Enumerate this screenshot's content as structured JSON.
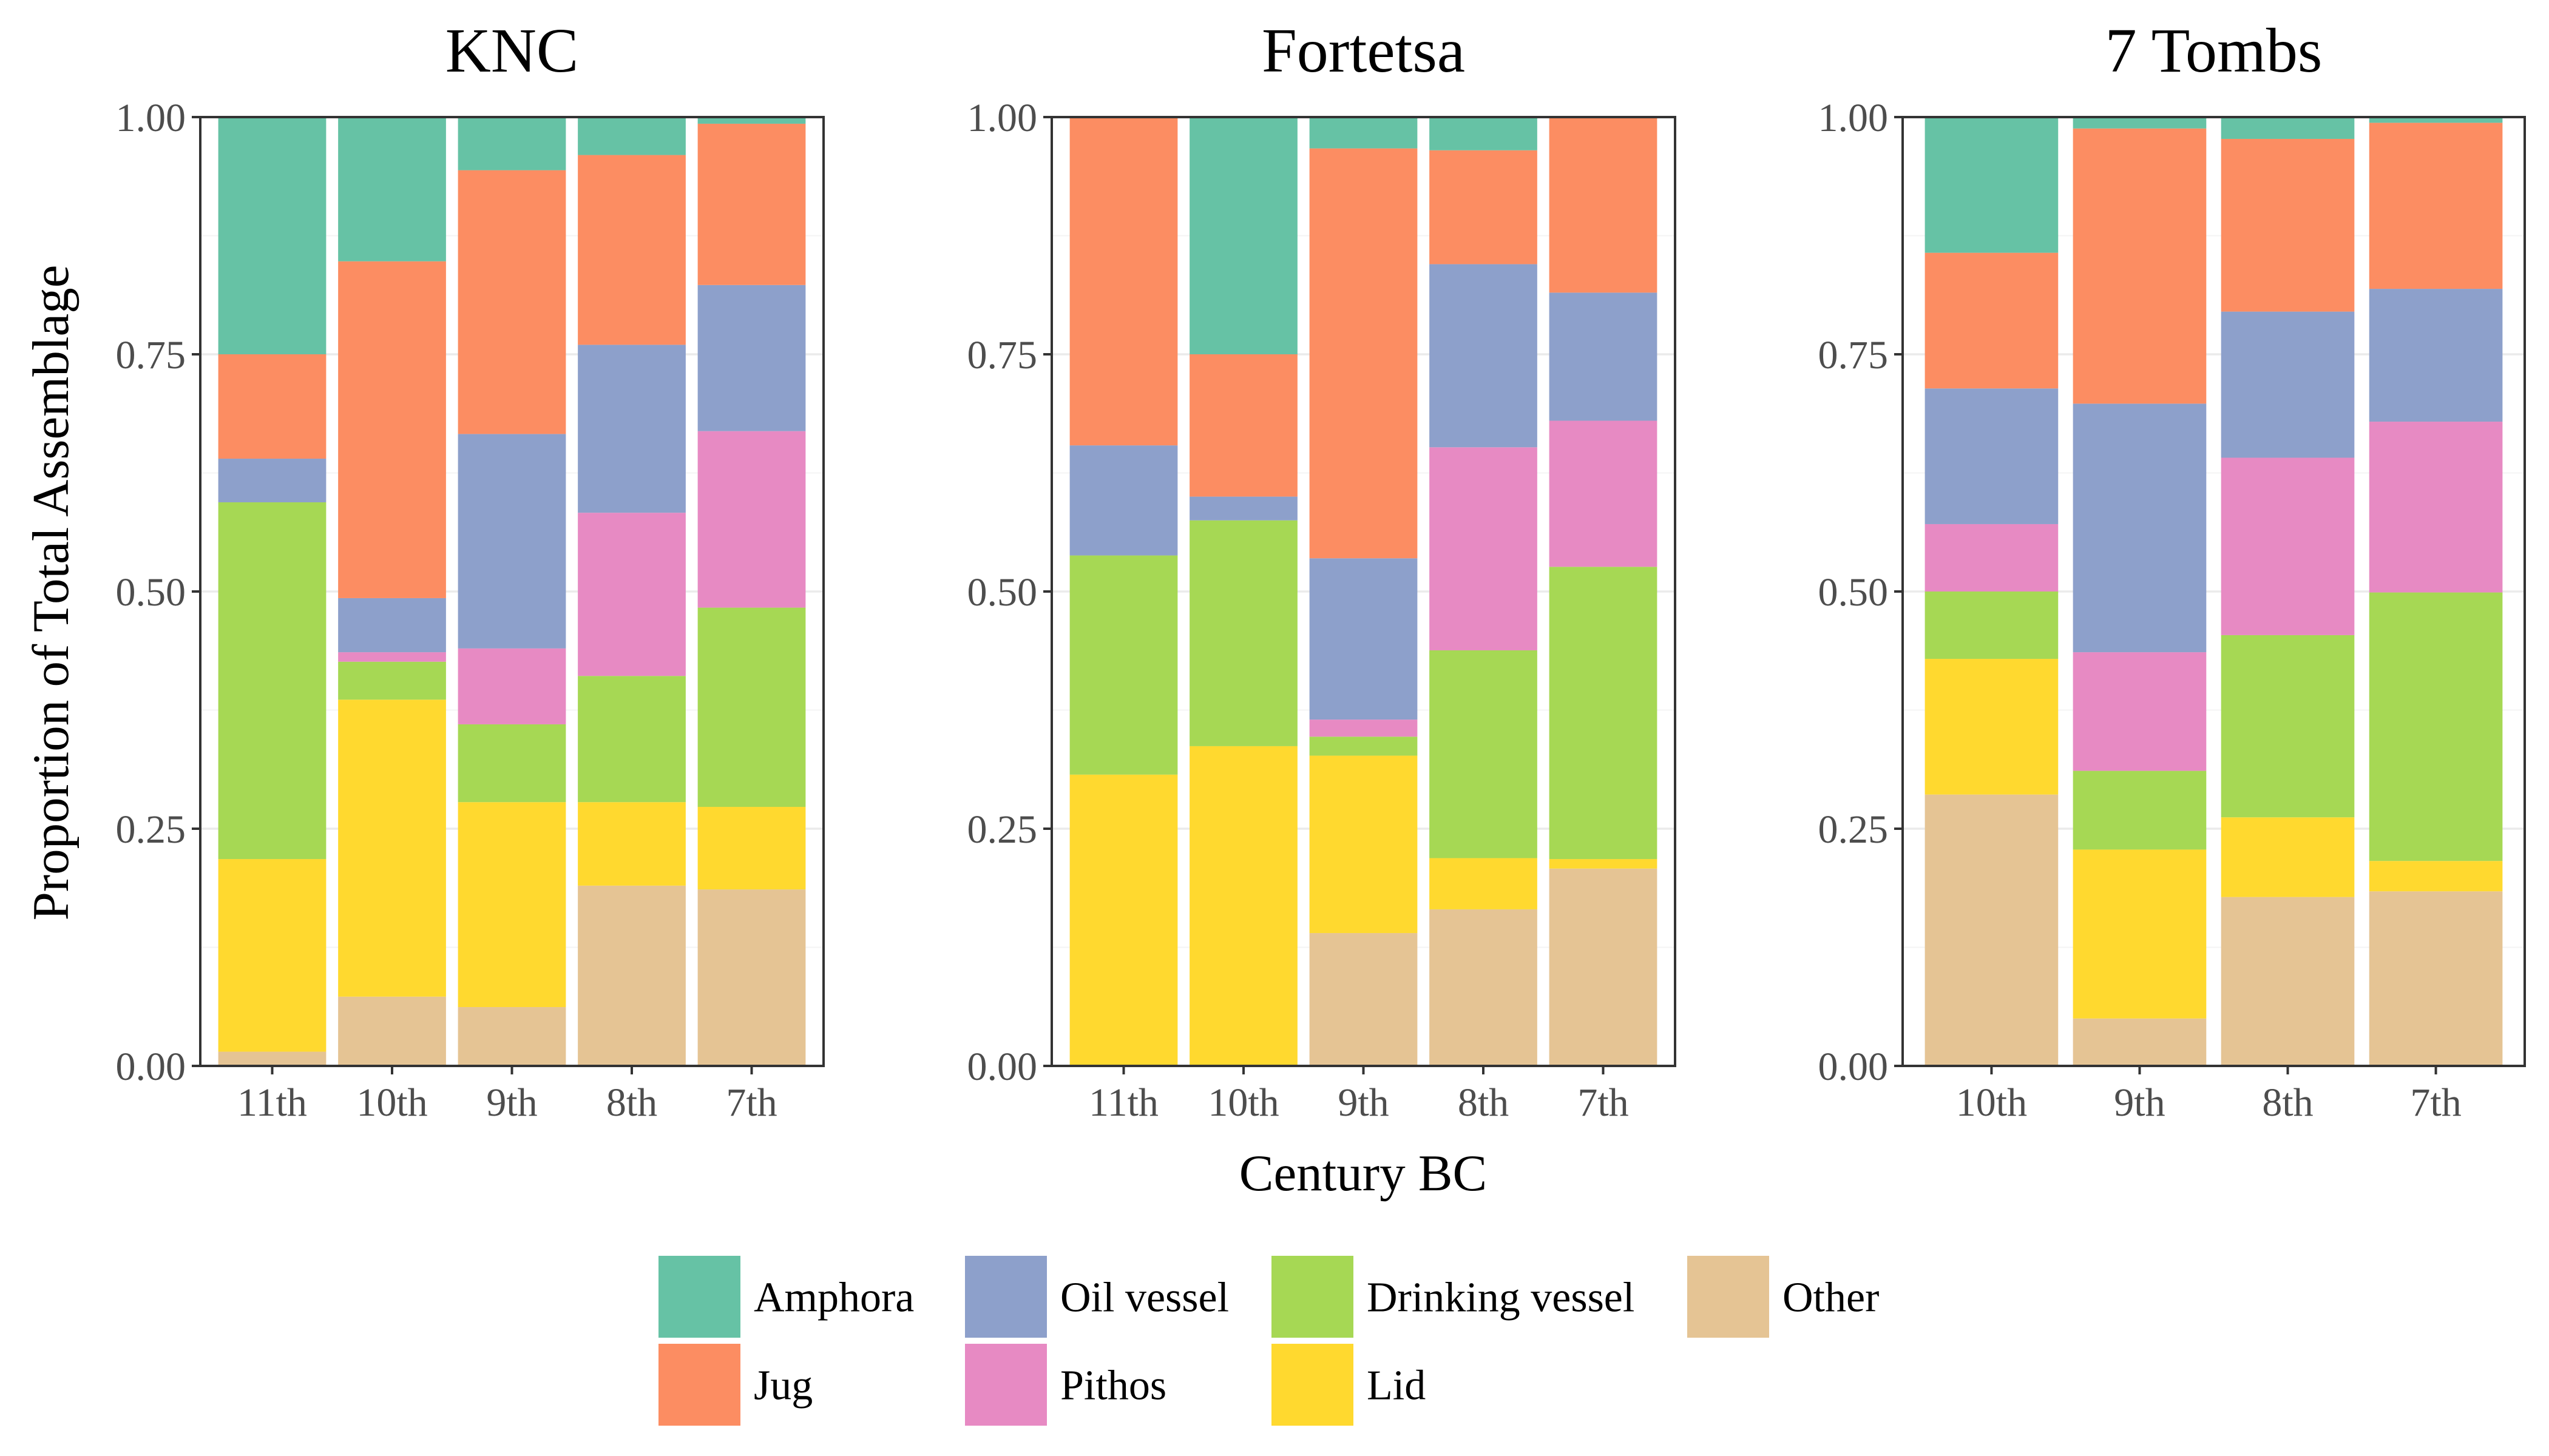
{
  "chart_data": {
    "type": "bar",
    "stacked": true,
    "normalized": true,
    "xlabel": "Century BC",
    "ylabel": "Proportion of Total Assemblage",
    "ylim": [
      0,
      1
    ],
    "yticks": [
      "0.00",
      "0.25",
      "0.50",
      "0.75",
      "1.00"
    ],
    "grid": true,
    "legend_position": "bottom",
    "stack_order_bottom_to_top": [
      "Other",
      "Lid",
      "Drinking vessel",
      "Pithos",
      "Oil vessel",
      "Jug",
      "Amphora"
    ],
    "legend_order": [
      "Amphora",
      "Jug",
      "Oil vessel",
      "Pithos",
      "Drinking vessel",
      "Lid",
      "Other"
    ],
    "colors": {
      "Amphora": "#66c2a5",
      "Jug": "#fc8d62",
      "Oil vessel": "#8da0cb",
      "Pithos": "#e78ac3",
      "Drinking vessel": "#a6d854",
      "Lid": "#ffd92f",
      "Other": "#e5c494"
    },
    "panels": [
      {
        "title": "KNC",
        "categories": [
          "11th",
          "10th",
          "9th",
          "8th",
          "7th"
        ],
        "series": [
          {
            "name": "Other",
            "values": [
              0.015,
              0.073,
              0.062,
              0.19,
              0.186
            ]
          },
          {
            "name": "Lid",
            "values": [
              0.203,
              0.313,
              0.216,
              0.088,
              0.087
            ]
          },
          {
            "name": "Drinking vessel",
            "values": [
              0.376,
              0.04,
              0.082,
              0.133,
              0.21
            ]
          },
          {
            "name": "Pithos",
            "values": [
              0.0,
              0.01,
              0.08,
              0.172,
              0.186
            ]
          },
          {
            "name": "Oil vessel",
            "values": [
              0.046,
              0.057,
              0.226,
              0.177,
              0.154
            ]
          },
          {
            "name": "Jug",
            "values": [
              0.11,
              0.355,
              0.278,
              0.2,
              0.17
            ]
          },
          {
            "name": "Amphora",
            "values": [
              0.25,
              0.152,
              0.056,
              0.04,
              0.007
            ]
          }
        ]
      },
      {
        "title": "Fortetsa",
        "categories": [
          "11th",
          "10th",
          "9th",
          "8th",
          "7th"
        ],
        "series": [
          {
            "name": "Other",
            "values": [
              0.0,
              0.0,
              0.14,
              0.165,
              0.208
            ]
          },
          {
            "name": "Lid",
            "values": [
              0.307,
              0.337,
              0.187,
              0.054,
              0.01
            ]
          },
          {
            "name": "Drinking vessel",
            "values": [
              0.231,
              0.238,
              0.02,
              0.219,
              0.308
            ]
          },
          {
            "name": "Pithos",
            "values": [
              0.0,
              0.0,
              0.018,
              0.214,
              0.154
            ]
          },
          {
            "name": "Oil vessel",
            "values": [
              0.116,
              0.025,
              0.17,
              0.193,
              0.135
            ]
          },
          {
            "name": "Jug",
            "values": [
              0.346,
              0.15,
              0.432,
              0.12,
              0.185
            ]
          },
          {
            "name": "Amphora",
            "values": [
              0.0,
              0.25,
              0.033,
              0.035,
              0.0
            ]
          }
        ]
      },
      {
        "title": "7 Tombs",
        "categories": [
          "10th",
          "9th",
          "8th",
          "7th"
        ],
        "series": [
          {
            "name": "Other",
            "values": [
              0.286,
              0.05,
              0.178,
              0.184
            ]
          },
          {
            "name": "Lid",
            "values": [
              0.143,
              0.178,
              0.084,
              0.032
            ]
          },
          {
            "name": "Drinking vessel",
            "values": [
              0.071,
              0.083,
              0.192,
              0.283
            ]
          },
          {
            "name": "Pithos",
            "values": [
              0.071,
              0.125,
              0.187,
              0.18
            ]
          },
          {
            "name": "Oil vessel",
            "values": [
              0.143,
              0.262,
              0.154,
              0.14
            ]
          },
          {
            "name": "Jug",
            "values": [
              0.143,
              0.29,
              0.182,
              0.175
            ]
          },
          {
            "name": "Amphora",
            "values": [
              0.143,
              0.012,
              0.023,
              0.006
            ]
          }
        ]
      }
    ]
  }
}
